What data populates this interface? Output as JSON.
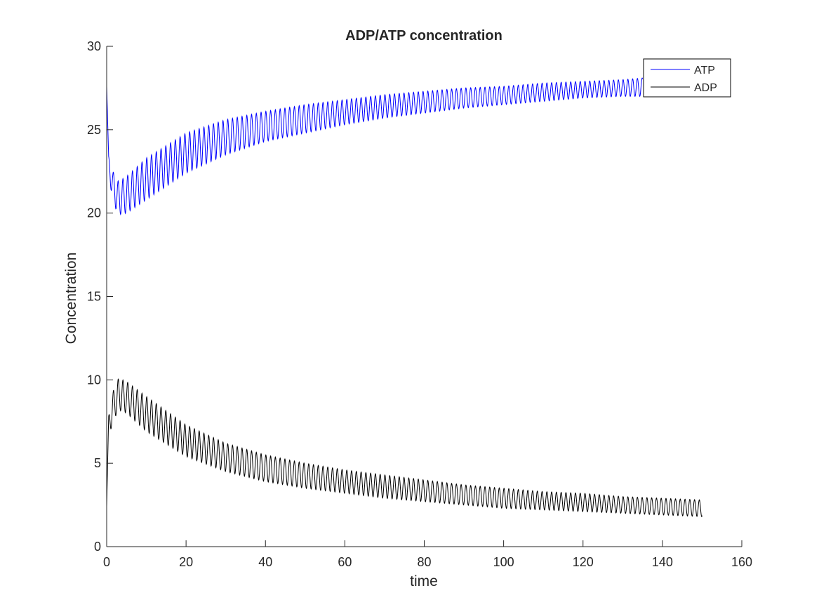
{
  "chart_data": {
    "type": "line",
    "title": "ADP/ATP concentration",
    "xlabel": "time",
    "ylabel": "Concentration",
    "xlim": [
      0,
      160
    ],
    "ylim": [
      0,
      30
    ],
    "xticks": [
      0,
      20,
      40,
      60,
      80,
      100,
      120,
      140,
      160
    ],
    "yticks": [
      0,
      5,
      10,
      15,
      20,
      25,
      30
    ],
    "grid": false,
    "legend_position": "top-right",
    "x_end": 150,
    "oscillation_period": 1.2,
    "series": [
      {
        "name": "ATP",
        "color": "#0000ff",
        "start_value": 27.6,
        "envelope": {
          "x": [
            0.5,
            1,
            2,
            3,
            5,
            10,
            20,
            30,
            40,
            50,
            60,
            70,
            80,
            90,
            100,
            110,
            120,
            130,
            135
          ],
          "upper": [
            23.4,
            23.0,
            22.2,
            21.9,
            22.2,
            23.3,
            24.8,
            25.6,
            26.1,
            26.5,
            26.8,
            27.1,
            27.3,
            27.5,
            27.6,
            27.8,
            27.9,
            28.0,
            28.1
          ],
          "lower": [
            22.2,
            21.5,
            20.4,
            19.9,
            20.0,
            20.8,
            22.4,
            23.5,
            24.3,
            24.8,
            25.3,
            25.7,
            26.0,
            26.3,
            26.5,
            26.7,
            26.9,
            27.0,
            27.0
          ]
        }
      },
      {
        "name": "ADP",
        "color": "#000000",
        "start_value": 2.4,
        "envelope": {
          "x": [
            0.5,
            1,
            2,
            3,
            5,
            10,
            20,
            30,
            40,
            50,
            60,
            70,
            80,
            90,
            100,
            110,
            120,
            130,
            140,
            150
          ],
          "upper": [
            7.8,
            8.8,
            9.6,
            10.1,
            9.9,
            9.0,
            7.3,
            6.2,
            5.5,
            5.0,
            4.6,
            4.3,
            4.0,
            3.7,
            3.5,
            3.3,
            3.2,
            3.0,
            2.9,
            2.8
          ],
          "lower": [
            6.7,
            7.0,
            7.7,
            8.2,
            8.0,
            6.9,
            5.4,
            4.5,
            3.9,
            3.5,
            3.2,
            2.9,
            2.7,
            2.5,
            2.3,
            2.2,
            2.1,
            2.0,
            1.9,
            1.8
          ]
        }
      }
    ]
  }
}
